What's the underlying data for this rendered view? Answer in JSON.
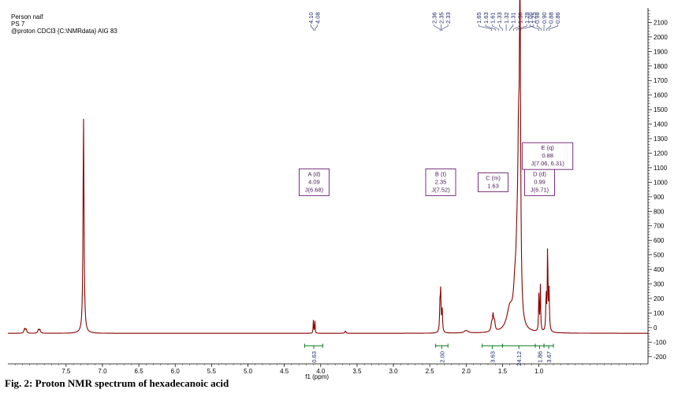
{
  "header": {
    "line1": "Person naif",
    "line2": "PS 7",
    "line3": "@proton CDCl3 {C:\\NMRdata} AIG 83"
  },
  "caption": "Fig. 2: Proton NMR spectrum of hexadecanoic acid",
  "chart_data": {
    "type": "line",
    "xlabel": "f1 (ppm)",
    "ylabel": "",
    "xlim": [
      8.3,
      -0.5
    ],
    "ylim": [
      -250,
      2200
    ],
    "x_axis_reversed": true,
    "x_ticks": [
      7.5,
      7.0,
      6.5,
      6.0,
      5.5,
      5.0,
      4.5,
      4.0,
      3.5,
      3.0,
      2.5,
      2.0,
      1.5,
      1.0
    ],
    "x_tick_labels": [
      "7.5",
      "7.0",
      "6.5",
      "6.0",
      "5.5",
      "5.0",
      "4.5",
      "4.0",
      "3.5",
      "3.0",
      "2.5",
      "2.0",
      "1.5",
      "1.0"
    ],
    "y_ticks": [
      -200,
      -100,
      0,
      100,
      200,
      300,
      400,
      500,
      600,
      700,
      800,
      900,
      1000,
      1100,
      1200,
      1300,
      1400,
      1500,
      1600,
      1700,
      1800,
      1900,
      2000,
      2100
    ],
    "y_tick_labels": [
      "-200",
      "-100",
      "0",
      "100",
      "200",
      "300",
      "400",
      "500",
      "600",
      "700",
      "800",
      "900",
      "1000",
      "1100",
      "1200",
      "1300",
      "1400",
      "1500",
      "1600",
      "1700",
      "1800",
      "1900",
      "2000",
      "2100"
    ],
    "baseline": -40,
    "color": "#8b0000",
    "peaks": [
      {
        "ppm": 7.26,
        "height": 1480,
        "width": 0.008
      },
      {
        "ppm": 8.07,
        "height": 30,
        "width": 0.01
      },
      {
        "ppm": 8.05,
        "height": 25,
        "width": 0.01
      },
      {
        "ppm": 7.88,
        "height": 25,
        "width": 0.01
      },
      {
        "ppm": 7.86,
        "height": 22,
        "width": 0.01
      },
      {
        "ppm": 4.1,
        "height": 90,
        "width": 0.004
      },
      {
        "ppm": 4.08,
        "height": 90,
        "width": 0.004
      },
      {
        "ppm": 3.66,
        "height": 15,
        "width": 0.01
      },
      {
        "ppm": 2.36,
        "height": 180,
        "width": 0.006
      },
      {
        "ppm": 2.35,
        "height": 260,
        "width": 0.006
      },
      {
        "ppm": 2.33,
        "height": 160,
        "width": 0.006
      },
      {
        "ppm": 2.0,
        "height": 18,
        "width": 0.03
      },
      {
        "ppm": 1.65,
        "height": 50,
        "width": 0.01
      },
      {
        "ppm": 1.63,
        "height": 110,
        "width": 0.01
      },
      {
        "ppm": 1.61,
        "height": 60,
        "width": 0.01
      },
      {
        "ppm": 1.4,
        "height": 150,
        "width": 0.05
      },
      {
        "ppm": 1.33,
        "height": 200,
        "width": 0.025
      },
      {
        "ppm": 1.3,
        "height": 400,
        "width": 0.02
      },
      {
        "ppm": 1.28,
        "height": 900,
        "width": 0.012
      },
      {
        "ppm": 1.26,
        "height": 2160,
        "width": 0.01
      },
      {
        "ppm": 1.0,
        "height": 260,
        "width": 0.005
      },
      {
        "ppm": 0.98,
        "height": 320,
        "width": 0.005
      },
      {
        "ppm": 0.9,
        "height": 260,
        "width": 0.006
      },
      {
        "ppm": 0.88,
        "height": 600,
        "width": 0.005
      },
      {
        "ppm": 0.86,
        "height": 280,
        "width": 0.006
      }
    ],
    "peak_label_groups": [
      {
        "labels": [
          "4.10",
          "4.08"
        ],
        "from": 4.1,
        "to": 4.08
      },
      {
        "labels": [
          "2.36",
          "2.35",
          "2.33"
        ],
        "from": 2.36,
        "to": 2.33
      },
      {
        "labels": [
          "1.65",
          "1.63",
          "1.61",
          "1.33",
          "1.32",
          "1.31",
          "1.30",
          "1.28",
          "1.25"
        ],
        "from": 1.65,
        "to": 1.25
      },
      {
        "labels": [
          "1.00",
          "0.98",
          "0.90",
          "0.88",
          "0.86"
        ],
        "from": 1.0,
        "to": 0.86
      }
    ],
    "multiplets": [
      {
        "letter": "A",
        "mult": "d",
        "shift": "4.09",
        "j": "J(6.68)",
        "ppm": 4.09,
        "level": 1000
      },
      {
        "letter": "B",
        "mult": "t",
        "shift": "2.35",
        "j": "J(7.52)",
        "ppm": 2.35,
        "level": 1000
      },
      {
        "letter": "C",
        "mult": "m",
        "shift": "1.63",
        "j": "",
        "ppm": 1.63,
        "level": 1000
      },
      {
        "letter": "D",
        "mult": "d",
        "shift": "0.99",
        "j": "J(6.71)",
        "ppm": 0.99,
        "level": 1000
      },
      {
        "letter": "E",
        "mult": "q",
        "shift": "0.88",
        "j": "J(7.06, 6.31)",
        "ppm": 0.88,
        "level": 1180
      }
    ],
    "integrals": [
      {
        "from": 4.22,
        "to": 3.97,
        "value": "0.63"
      },
      {
        "from": 2.42,
        "to": 2.25,
        "value": "2.00"
      },
      {
        "from": 1.78,
        "to": 1.5,
        "value": "3.63"
      },
      {
        "from": 1.5,
        "to": 1.05,
        "value": "24.12"
      },
      {
        "from": 1.05,
        "to": 0.93,
        "value": "1.86"
      },
      {
        "from": 0.93,
        "to": 0.8,
        "value": "3.67"
      }
    ]
  }
}
